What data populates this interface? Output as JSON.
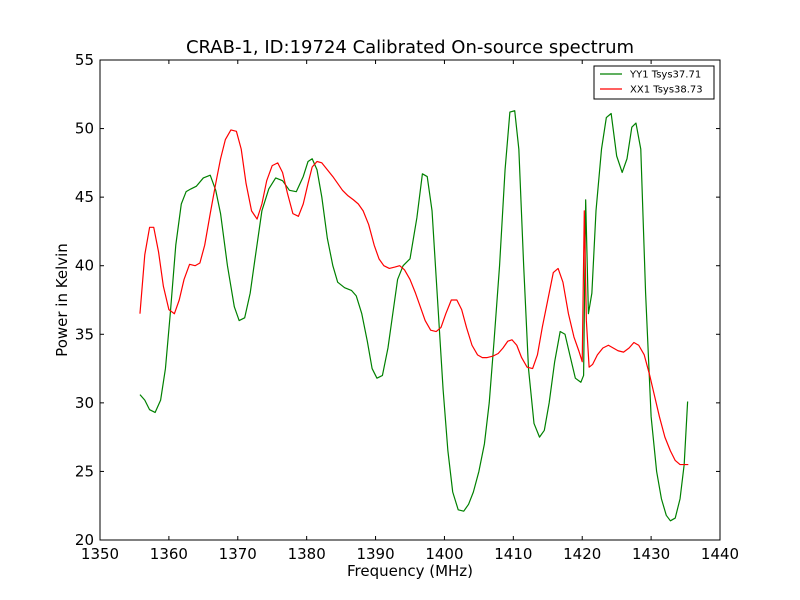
{
  "chart_data": {
    "type": "line",
    "title": "CRAB-1, ID:19724 Calibrated On-source spectrum",
    "xlabel": "Frequency (MHz)",
    "ylabel": "Power in Kelvin",
    "xlim": [
      1350,
      1440
    ],
    "ylim": [
      20,
      55
    ],
    "xticks": [
      1350,
      1360,
      1370,
      1380,
      1390,
      1400,
      1410,
      1420,
      1430,
      1440
    ],
    "yticks": [
      20,
      25,
      30,
      35,
      40,
      45,
      50,
      55
    ],
    "grid": false,
    "legend_position": "top-right",
    "series": [
      {
        "name": "YY1 Tsys37.71",
        "color": "#008000",
        "x": [
          1355.8,
          1356.5,
          1357.2,
          1358.0,
          1358.8,
          1359.5,
          1360.2,
          1361.0,
          1361.8,
          1362.5,
          1363.2,
          1364.0,
          1365.0,
          1366.0,
          1366.8,
          1367.5,
          1368.5,
          1369.5,
          1370.2,
          1371.0,
          1371.8,
          1372.5,
          1373.5,
          1374.5,
          1375.5,
          1376.5,
          1377.5,
          1378.5,
          1379.5,
          1380.2,
          1380.8,
          1381.5,
          1382.2,
          1383.0,
          1383.8,
          1384.5,
          1385.5,
          1386.5,
          1387.2,
          1388.0,
          1388.8,
          1389.5,
          1390.2,
          1391.0,
          1391.8,
          1392.5,
          1393.2,
          1394.0,
          1395.0,
          1396.0,
          1396.8,
          1397.5,
          1398.2,
          1399.0,
          1399.8,
          1400.5,
          1401.2,
          1402.0,
          1402.8,
          1403.5,
          1404.2,
          1405.0,
          1405.8,
          1406.5,
          1407.2,
          1408.0,
          1408.8,
          1409.5,
          1410.2,
          1410.8,
          1411.5,
          1412.2,
          1413.0,
          1413.8,
          1414.5,
          1415.2,
          1416.0,
          1416.8,
          1417.5,
          1418.2,
          1419.0,
          1419.8,
          1420.2,
          1420.5,
          1420.9,
          1421.4,
          1422.0,
          1422.8,
          1423.5,
          1424.2,
          1425.0,
          1425.8,
          1426.5,
          1427.2,
          1427.8,
          1428.5,
          1429.2,
          1430.0,
          1430.8,
          1431.5,
          1432.2,
          1432.8,
          1433.5,
          1434.2,
          1434.8,
          1435.3
        ],
        "values": [
          30.6,
          30.2,
          29.5,
          29.3,
          30.2,
          32.5,
          36.5,
          41.5,
          44.5,
          45.4,
          45.6,
          45.8,
          46.4,
          46.6,
          45.5,
          43.8,
          40.0,
          37.0,
          36.0,
          36.2,
          38.0,
          40.5,
          44.0,
          45.6,
          46.4,
          46.2,
          45.5,
          45.4,
          46.5,
          47.6,
          47.8,
          47.0,
          45.0,
          42.0,
          40.0,
          38.8,
          38.4,
          38.2,
          37.8,
          36.5,
          34.5,
          32.5,
          31.8,
          32.0,
          34.0,
          36.5,
          39.0,
          40.0,
          40.5,
          43.5,
          46.7,
          46.5,
          44.0,
          37.5,
          31.0,
          26.5,
          23.5,
          22.2,
          22.1,
          22.6,
          23.5,
          25.0,
          27.0,
          30.0,
          34.5,
          40.0,
          47.0,
          51.2,
          51.3,
          48.5,
          40.0,
          32.5,
          28.5,
          27.5,
          28.0,
          30.0,
          33.0,
          35.2,
          35.0,
          33.5,
          31.8,
          31.5,
          32.0,
          44.8,
          36.5,
          38.0,
          44.0,
          48.5,
          50.8,
          51.1,
          48.0,
          46.8,
          47.8,
          50.1,
          50.4,
          48.5,
          38.0,
          29.0,
          25.0,
          23.0,
          21.8,
          21.4,
          21.6,
          23.0,
          25.5,
          30.1
        ]
      },
      {
        "name": "XX1 Tsys38.73",
        "color": "#ff0000",
        "x": [
          1355.8,
          1356.5,
          1357.2,
          1357.8,
          1358.5,
          1359.2,
          1360.0,
          1360.8,
          1361.5,
          1362.2,
          1363.0,
          1363.8,
          1364.5,
          1365.2,
          1366.0,
          1366.8,
          1367.5,
          1368.2,
          1369.0,
          1369.8,
          1370.5,
          1371.2,
          1372.0,
          1372.8,
          1373.5,
          1374.2,
          1375.0,
          1375.8,
          1376.5,
          1377.2,
          1378.0,
          1378.8,
          1379.5,
          1380.2,
          1380.8,
          1381.5,
          1382.2,
          1383.0,
          1383.8,
          1384.5,
          1385.2,
          1386.0,
          1386.8,
          1387.5,
          1388.2,
          1389.0,
          1389.8,
          1390.5,
          1391.2,
          1392.0,
          1392.8,
          1393.5,
          1394.2,
          1395.0,
          1395.8,
          1396.5,
          1397.2,
          1398.0,
          1398.8,
          1399.5,
          1400.2,
          1401.0,
          1401.8,
          1402.5,
          1403.2,
          1404.0,
          1404.8,
          1405.5,
          1406.2,
          1407.0,
          1407.8,
          1408.5,
          1409.2,
          1409.8,
          1410.5,
          1411.2,
          1412.0,
          1412.8,
          1413.5,
          1414.2,
          1415.0,
          1415.8,
          1416.5,
          1417.2,
          1418.0,
          1418.8,
          1419.5,
          1420.0,
          1420.3,
          1420.6,
          1421.0,
          1421.5,
          1422.2,
          1423.0,
          1423.8,
          1424.5,
          1425.2,
          1426.0,
          1426.8,
          1427.5,
          1428.2,
          1429.0,
          1429.8,
          1430.5,
          1431.2,
          1432.0,
          1432.8,
          1433.5,
          1434.2,
          1435.0,
          1435.4
        ],
        "values": [
          36.5,
          40.8,
          42.8,
          42.8,
          41.0,
          38.5,
          36.8,
          36.5,
          37.5,
          39.0,
          40.1,
          40.0,
          40.2,
          41.5,
          43.8,
          46.0,
          47.8,
          49.2,
          49.9,
          49.8,
          48.5,
          46.0,
          44.0,
          43.4,
          44.5,
          46.2,
          47.3,
          47.5,
          46.8,
          45.3,
          43.8,
          43.6,
          44.5,
          46.0,
          47.2,
          47.6,
          47.5,
          47.0,
          46.5,
          46.0,
          45.5,
          45.1,
          44.8,
          44.5,
          44.0,
          43.0,
          41.5,
          40.5,
          40.0,
          39.8,
          39.9,
          40.0,
          39.7,
          39.0,
          38.0,
          37.0,
          36.0,
          35.3,
          35.2,
          35.5,
          36.5,
          37.5,
          37.5,
          36.8,
          35.5,
          34.2,
          33.5,
          33.3,
          33.3,
          33.4,
          33.6,
          34.0,
          34.5,
          34.6,
          34.2,
          33.3,
          32.6,
          32.5,
          33.5,
          35.5,
          37.5,
          39.5,
          39.8,
          38.8,
          36.5,
          34.8,
          33.8,
          33.0,
          44.0,
          36.0,
          32.6,
          32.8,
          33.5,
          34.0,
          34.2,
          34.0,
          33.8,
          33.7,
          34.0,
          34.4,
          34.2,
          33.5,
          32.0,
          30.5,
          29.0,
          27.5,
          26.5,
          25.8,
          25.5,
          25.5,
          25.5
        ]
      }
    ]
  }
}
